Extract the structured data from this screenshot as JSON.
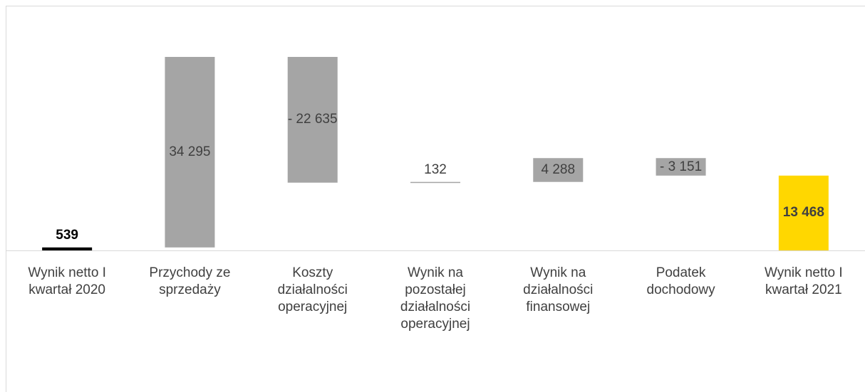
{
  "chart_data": {
    "type": "waterfall",
    "categories": [
      "Wynik netto I kwartał 2020",
      "Przychody ze sprzedaży",
      "Koszty działalności operacyjnej",
      "Wynik na pozostałej działalności operacyjnej",
      "Wynik na działalności finansowej",
      "Podatek dochodowy",
      "Wynik netto I kwartał 2021"
    ],
    "values": [
      539,
      34295,
      -22635,
      132,
      4288,
      -3151,
      13468
    ],
    "value_labels": [
      "539",
      "34 295",
      "- 22 635",
      "132",
      "4 288",
      "- 3 151",
      "13 468"
    ],
    "measures": [
      "absolute",
      "relative",
      "relative",
      "relative",
      "relative",
      "relative",
      "total"
    ],
    "colors": [
      "#000000",
      "#a5a5a5",
      "#a5a5a5",
      "#a5a5a5",
      "#a5a5a5",
      "#a5a5a5",
      "#ffd700"
    ]
  }
}
